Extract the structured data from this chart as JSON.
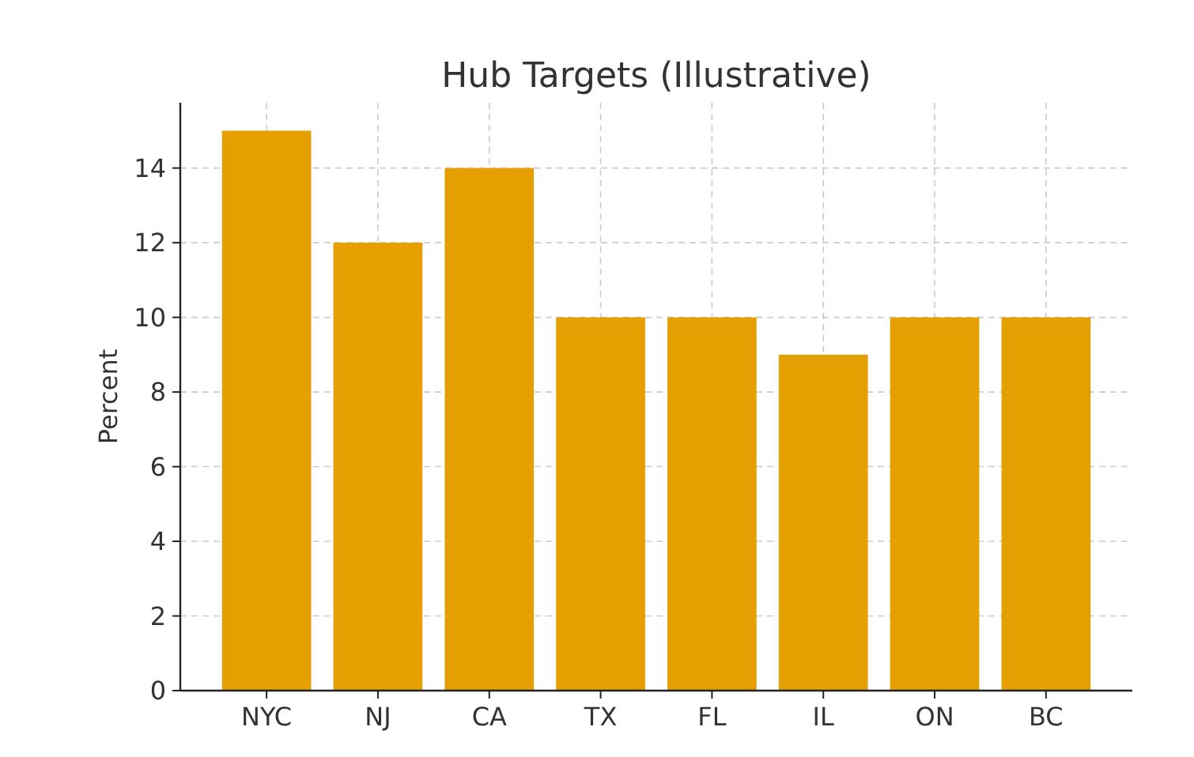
{
  "chart_data": {
    "type": "bar",
    "title": "Hub Targets (Illustrative)",
    "ylabel": "Percent",
    "categories": [
      "NYC",
      "NJ",
      "CA",
      "TX",
      "FL",
      "IL",
      "ON",
      "BC"
    ],
    "values": [
      15,
      12,
      14,
      10,
      10,
      9,
      10,
      10
    ],
    "color": "#e69f00",
    "ylim": [
      0,
      15.75
    ],
    "yticks": [
      0,
      2,
      4,
      6,
      8,
      10,
      12,
      14
    ],
    "grid": true
  }
}
